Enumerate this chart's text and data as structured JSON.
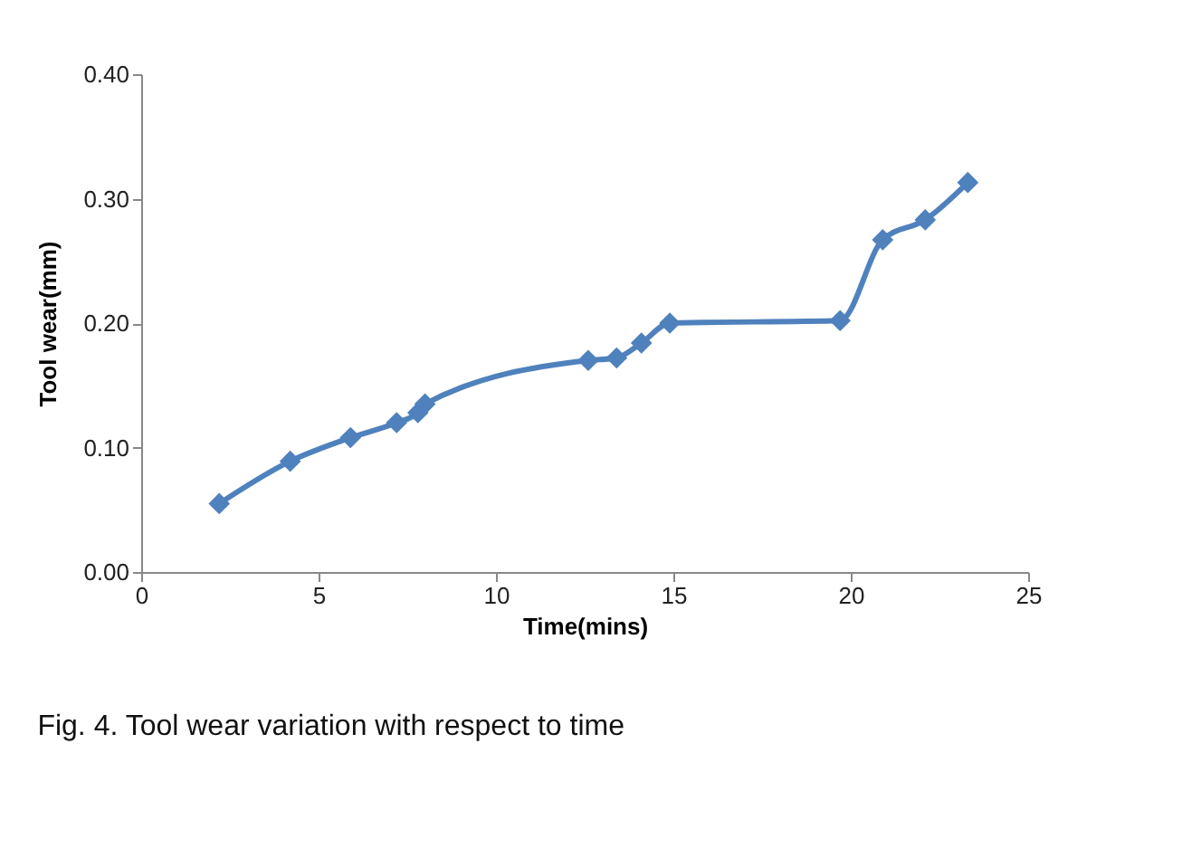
{
  "chart_data": {
    "type": "line",
    "xlabel": "Time(mins)",
    "ylabel": "Tool wear(mm)",
    "x": [
      2.2,
      4.2,
      5.9,
      7.2,
      7.8,
      8.0,
      12.6,
      13.4,
      14.1,
      14.9,
      19.7,
      20.9,
      22.1,
      23.3
    ],
    "series": [
      {
        "color": "#4f81bd",
        "values": [
          0.055,
          0.089,
          0.108,
          0.12,
          0.128,
          0.135,
          0.17,
          0.172,
          0.184,
          0.2,
          0.202,
          0.267,
          0.283,
          0.313
        ]
      }
    ],
    "xlim": [
      0,
      25
    ],
    "xticks": [
      0,
      5,
      10,
      15,
      20,
      25
    ],
    "ylim": [
      0,
      0.4
    ],
    "yticks": [
      {
        "value": 0,
        "label": "0.00"
      },
      {
        "value": 0.1,
        "label": "0.10"
      },
      {
        "value": 0.2,
        "label": "0.20"
      },
      {
        "value": 0.3,
        "label": "0.30"
      },
      {
        "value": 0.4,
        "label": "0.40"
      }
    ],
    "marker": "diamond",
    "line_style": "solid",
    "grid": false,
    "annotations": [
      "Fig. 4. Tool wear variation with respect to time"
    ]
  }
}
